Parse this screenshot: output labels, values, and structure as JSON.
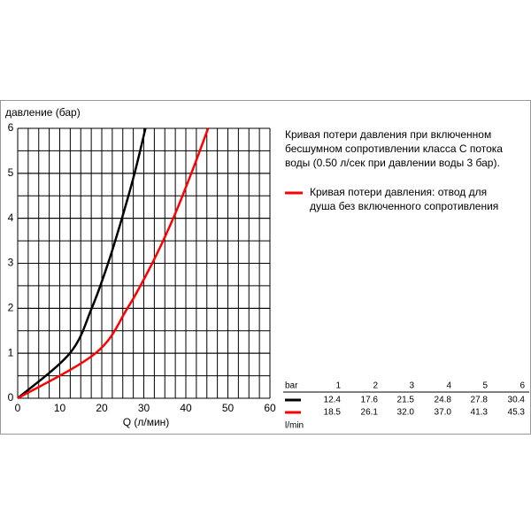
{
  "chart_data": {
    "type": "line",
    "ylabel": "давление (бар)",
    "xlabel": "Q (л/мин)",
    "xlim": [
      0,
      60
    ],
    "xticks": [
      0,
      10,
      20,
      30,
      40,
      50,
      60
    ],
    "ylim": [
      0,
      6
    ],
    "yticks": [
      0,
      1,
      2,
      3,
      4,
      5,
      6
    ],
    "grid": true,
    "series": [
      {
        "color": "#000000",
        "x": [
          0,
          12.4,
          17.6,
          21.5,
          24.8,
          27.8,
          30.4
        ],
        "values": [
          0,
          1,
          2,
          3,
          4,
          5,
          6
        ]
      },
      {
        "color": "#ff0000",
        "x": [
          0,
          18.5,
          26.1,
          32.0,
          37.0,
          41.3,
          45.3
        ],
        "values": [
          0,
          1,
          2,
          3,
          4,
          5,
          6
        ]
      }
    ],
    "annotation": [
      "Кривая потери давления при включенном",
      "бесшумном сопротивлении класса C потока",
      "воды (0.50 л/сек при давлении воды 3 бар)."
    ],
    "legend": [
      "Кривая потери давления: отвод для",
      "душа без включенного сопротивления"
    ],
    "table": {
      "header": "bar",
      "unit": "l/min",
      "columns": [
        "1",
        "2",
        "3",
        "4",
        "5",
        "6"
      ],
      "rows": [
        [
          "12.4",
          "17.6",
          "21.5",
          "24.8",
          "27.8",
          "30.4"
        ],
        [
          "18.5",
          "26.1",
          "32.0",
          "37.0",
          "41.3",
          "45.3"
        ]
      ]
    }
  }
}
